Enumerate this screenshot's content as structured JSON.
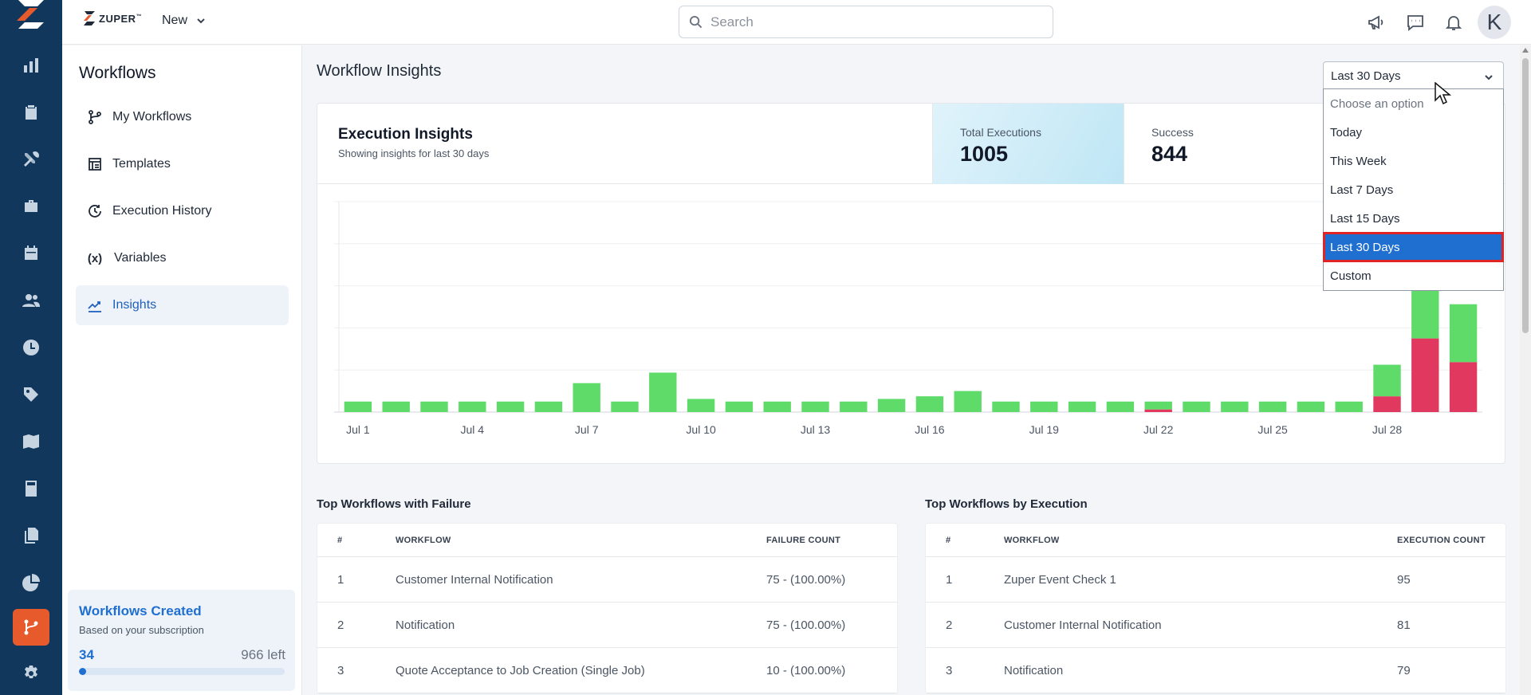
{
  "app": {
    "brand": "ZUPER",
    "brand_tm": "™",
    "new_label": "New",
    "search_placeholder": "Search",
    "avatar_initial": "K"
  },
  "rail_icons": [
    "dashboard-icon",
    "clipboard-icon",
    "tools-icon",
    "briefcase-icon",
    "calendar-icon",
    "users-icon",
    "clock-icon",
    "tag-icon",
    "map-icon",
    "calculator-icon",
    "documents-icon",
    "pie-chart-icon",
    "workflow-icon",
    "settings-icon"
  ],
  "sidebar": {
    "title": "Workflows",
    "items": [
      {
        "label": "My Workflows",
        "icon": "branch-icon"
      },
      {
        "label": "Templates",
        "icon": "template-icon"
      },
      {
        "label": "Execution History",
        "icon": "history-icon"
      },
      {
        "label": "Variables",
        "icon": "variable-icon",
        "glyph": "(x)"
      },
      {
        "label": "Insights",
        "icon": "insights-icon",
        "active": true
      }
    ],
    "quota": {
      "title": "Workflows Created",
      "subtitle": "Based on your subscription",
      "used": "34",
      "left": "966 left",
      "fraction": 0.034
    }
  },
  "main": {
    "title": "Workflow Insights",
    "range": {
      "selected": "Last 30 Days",
      "options": [
        "Choose an option",
        "Today",
        "This Week",
        "Last 7 Days",
        "Last 15 Days",
        "Last 30 Days",
        "Custom"
      ]
    },
    "execution": {
      "title": "Execution Insights",
      "subtitle": "Showing insights for last 30 days",
      "total_label": "Total Executions",
      "total_value": "1005",
      "success_label": "Success",
      "success_value": "844"
    }
  },
  "chart_data": {
    "type": "bar",
    "stacked": true,
    "categories": [
      "Jul 1",
      "Jul 2",
      "Jul 3",
      "Jul 4",
      "Jul 5",
      "Jul 6",
      "Jul 7",
      "Jul 8",
      "Jul 9",
      "Jul 10",
      "Jul 11",
      "Jul 12",
      "Jul 13",
      "Jul 14",
      "Jul 15",
      "Jul 16",
      "Jul 17",
      "Jul 18",
      "Jul 19",
      "Jul 20",
      "Jul 21",
      "Jul 22",
      "Jul 23",
      "Jul 24",
      "Jul 25",
      "Jul 26",
      "Jul 27",
      "Jul 28",
      "Jul 29",
      "Jul 30"
    ],
    "tick_labels": [
      "Jul 1",
      "Jul 4",
      "Jul 7",
      "Jul 10",
      "Jul 13",
      "Jul 16",
      "Jul 19",
      "Jul 22",
      "Jul 25",
      "Jul 28"
    ],
    "series": [
      {
        "color": "#e0385e",
        "values": [
          0,
          0,
          0,
          0,
          0,
          0,
          0,
          0,
          0,
          0,
          0,
          0,
          0,
          0,
          0,
          0,
          0,
          0,
          0,
          0,
          0,
          1,
          0,
          0,
          0,
          0,
          0,
          6,
          28,
          19
        ]
      },
      {
        "color": "#5fdb6a",
        "values": [
          4,
          4,
          4,
          4,
          4,
          4,
          11,
          4,
          15,
          5,
          4,
          4,
          4,
          4,
          5,
          6,
          8,
          4,
          4,
          4,
          4,
          3,
          4,
          4,
          4,
          4,
          4,
          12,
          23,
          22
        ]
      }
    ],
    "ylim": [
      0,
      80
    ],
    "gridlines": 5,
    "grid": true
  },
  "tables": {
    "failure": {
      "title": "Top Workflows with Failure",
      "headers": [
        "#",
        "WORKFLOW",
        "FAILURE COUNT"
      ],
      "rows": [
        [
          "1",
          "Customer Internal Notification",
          "75 - (100.00%)"
        ],
        [
          "2",
          "Notification",
          "75 - (100.00%)"
        ],
        [
          "3",
          "Quote Acceptance to Job Creation (Single Job)",
          "10 - (100.00%)"
        ]
      ]
    },
    "execution": {
      "title": "Top Workflows by Execution",
      "headers": [
        "#",
        "WORKFLOW",
        "EXECUTION COUNT"
      ],
      "rows": [
        [
          "1",
          "Zuper Event Check 1",
          "95"
        ],
        [
          "2",
          "Customer Internal Notification",
          "81"
        ],
        [
          "3",
          "Notification",
          "79"
        ]
      ]
    }
  }
}
